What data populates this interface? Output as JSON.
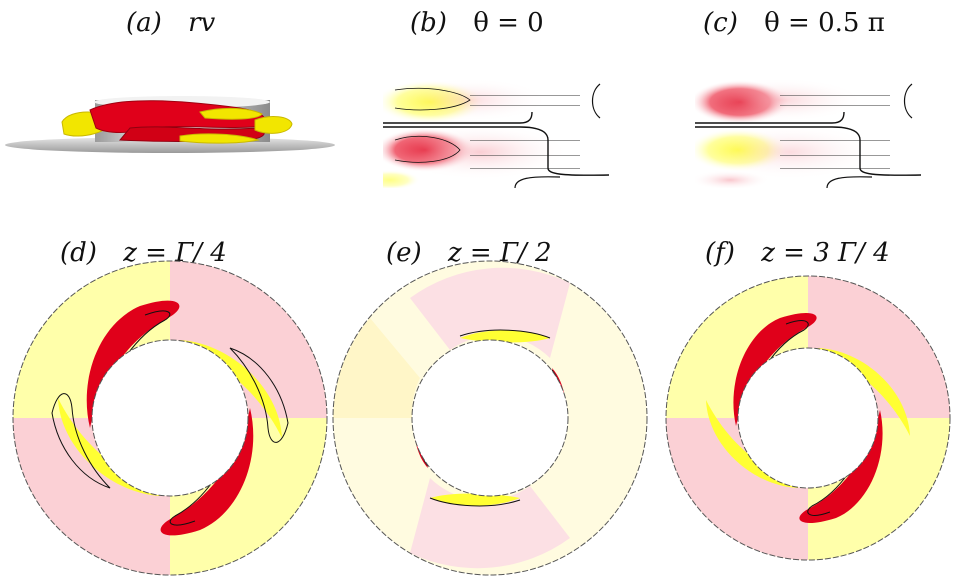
{
  "panels": {
    "a": {
      "letter": "(a)",
      "text": "rv"
    },
    "b": {
      "letter": "(b)",
      "text": "θ = 0"
    },
    "c": {
      "letter": "(c)",
      "text": "θ = 0.5 π"
    },
    "d": {
      "letter": "(d)",
      "text": "z =  Γ/ 4"
    },
    "e": {
      "letter": "(e)",
      "text": "z =  Γ/ 2"
    },
    "f": {
      "letter": "(f)",
      "text": "z =  3 Γ/ 4"
    }
  },
  "colors": {
    "positive": "#e0001a",
    "negative": "#ffff33",
    "contour": "#111111",
    "surface": "#cfcfcf"
  }
}
